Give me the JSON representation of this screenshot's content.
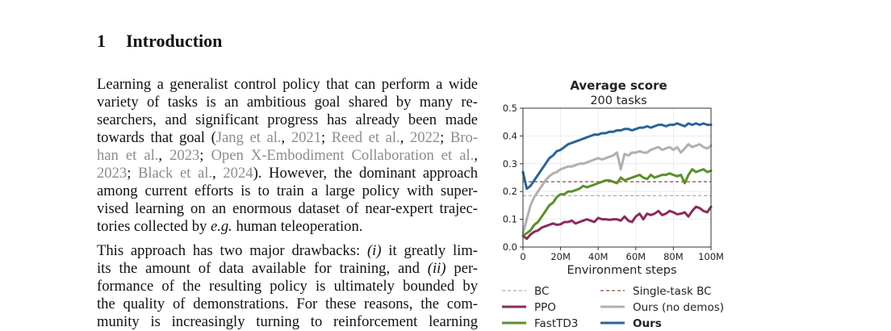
{
  "section": {
    "number": "1",
    "title": "Introduction"
  },
  "paragraph1": {
    "lines": [
      [
        {
          "t": "Learning a generalist control policy that can perform a wide"
        }
      ],
      [
        {
          "t": "variety of tasks is an ambitious goal shared by many re-"
        }
      ],
      [
        {
          "t": "searchers, and significant progress has already been made"
        }
      ],
      [
        {
          "t": "towards that goal ("
        },
        {
          "t": "Jang et al.",
          "c": "cite"
        },
        {
          "t": ", "
        },
        {
          "t": "2021",
          "c": "cite"
        },
        {
          "t": "; "
        },
        {
          "t": "Reed et al.",
          "c": "cite"
        },
        {
          "t": ", "
        },
        {
          "t": "2022",
          "c": "cite"
        },
        {
          "t": "; "
        },
        {
          "t": "Bro-",
          "c": "cite"
        }
      ],
      [
        {
          "t": "han et al.",
          "c": "cite"
        },
        {
          "t": ", "
        },
        {
          "t": "2023",
          "c": "cite"
        },
        {
          "t": "; "
        },
        {
          "t": "Open X-Embodiment Collaboration et al.",
          "c": "cite"
        },
        {
          "t": ","
        }
      ],
      [
        {
          "t": "2023",
          "c": "cite"
        },
        {
          "t": "; "
        },
        {
          "t": "Black et al.",
          "c": "cite"
        },
        {
          "t": ", "
        },
        {
          "t": "2024",
          "c": "cite"
        },
        {
          "t": "). However, the dominant approach"
        }
      ],
      [
        {
          "t": "among current efforts is to train a large policy with super-"
        }
      ],
      [
        {
          "t": "vised learning on an enormous dataset of near-expert trajec-"
        }
      ],
      [
        {
          "t": "tories collected by "
        },
        {
          "t": "e.g.",
          "c": "it"
        },
        {
          "t": " human teleoperation."
        }
      ]
    ]
  },
  "paragraph2": {
    "lines": [
      [
        {
          "t": "This approach has two major drawbacks: "
        },
        {
          "t": "(i)",
          "c": "it"
        },
        {
          "t": " it greatly lim-"
        }
      ],
      [
        {
          "t": "its the amount of data available for training, and "
        },
        {
          "t": "(ii)",
          "c": "it"
        },
        {
          "t": " per-"
        }
      ],
      [
        {
          "t": "formance of the resulting policy is ultimately bounded by"
        }
      ],
      [
        {
          "t": "the quality of demonstrations. For these reasons, the com-"
        }
      ],
      [
        {
          "t": "munity is increasingly turning to reinforcement learning"
        }
      ]
    ]
  },
  "figure": {
    "chart_data": {
      "type": "line",
      "title": "Average score",
      "subtitle": "200 tasks",
      "xlabel": "Environment steps",
      "ylabel": "",
      "xlim": [
        0,
        100
      ],
      "ylim": [
        0,
        0.5
      ],
      "xticks": [
        {
          "v": 0,
          "label": "0"
        },
        {
          "v": 20,
          "label": "20M"
        },
        {
          "v": 40,
          "label": "40M"
        },
        {
          "v": 60,
          "label": "60M"
        },
        {
          "v": 80,
          "label": "80M"
        },
        {
          "v": 100,
          "label": "100M"
        }
      ],
      "yticks": [
        {
          "v": 0,
          "label": "0.0"
        },
        {
          "v": 0.1,
          "label": "0.1"
        },
        {
          "v": 0.2,
          "label": "0.2"
        },
        {
          "v": 0.3,
          "label": "0.3"
        },
        {
          "v": 0.4,
          "label": "0.4"
        },
        {
          "v": 0.5,
          "label": "0.5"
        }
      ],
      "grid": true,
      "legend_position": "bottom",
      "hlines": [
        {
          "name": "BC",
          "y": 0.185,
          "color": "#aaaaaa",
          "dash": true
        },
        {
          "name": "Single-task BC",
          "y": 0.235,
          "color": "#8c4a3a",
          "dash": true
        }
      ],
      "series": [
        {
          "name": "PPO",
          "color": "#8b2a5c",
          "x": [
            0,
            2,
            4,
            6,
            8,
            10,
            12,
            14,
            16,
            18,
            20,
            22,
            24,
            26,
            28,
            30,
            32,
            34,
            36,
            38,
            40,
            42,
            44,
            46,
            48,
            50,
            52,
            54,
            56,
            58,
            60,
            62,
            64,
            66,
            68,
            70,
            72,
            74,
            76,
            78,
            80,
            82,
            84,
            86,
            88,
            90,
            92,
            94,
            96,
            98,
            100
          ],
          "y": [
            0.04,
            0.03,
            0.045,
            0.055,
            0.06,
            0.07,
            0.075,
            0.08,
            0.085,
            0.08,
            0.082,
            0.09,
            0.09,
            0.095,
            0.085,
            0.09,
            0.095,
            0.1,
            0.095,
            0.09,
            0.105,
            0.1,
            0.1,
            0.098,
            0.1,
            0.1,
            0.095,
            0.11,
            0.095,
            0.09,
            0.11,
            0.12,
            0.1,
            0.12,
            0.115,
            0.12,
            0.13,
            0.115,
            0.12,
            0.13,
            0.125,
            0.118,
            0.12,
            0.125,
            0.11,
            0.13,
            0.145,
            0.14,
            0.13,
            0.125,
            0.145
          ]
        },
        {
          "name": "FastTD3",
          "color": "#5b8f2a",
          "x": [
            0,
            2,
            4,
            6,
            8,
            10,
            12,
            14,
            16,
            18,
            20,
            22,
            24,
            26,
            28,
            30,
            32,
            34,
            36,
            38,
            40,
            42,
            44,
            46,
            48,
            50,
            52,
            54,
            56,
            58,
            60,
            62,
            64,
            66,
            68,
            70,
            72,
            74,
            76,
            78,
            80,
            82,
            84,
            86,
            88,
            90,
            92,
            94,
            96,
            98,
            100
          ],
          "y": [
            0.04,
            0.05,
            0.06,
            0.08,
            0.09,
            0.11,
            0.13,
            0.15,
            0.16,
            0.18,
            0.19,
            0.19,
            0.2,
            0.2,
            0.205,
            0.21,
            0.22,
            0.215,
            0.22,
            0.225,
            0.23,
            0.235,
            0.24,
            0.24,
            0.235,
            0.23,
            0.25,
            0.24,
            0.245,
            0.25,
            0.255,
            0.26,
            0.25,
            0.245,
            0.26,
            0.25,
            0.255,
            0.26,
            0.26,
            0.265,
            0.26,
            0.255,
            0.26,
            0.23,
            0.26,
            0.28,
            0.27,
            0.275,
            0.28,
            0.27,
            0.275
          ]
        },
        {
          "name": "Ours (no demos)",
          "color": "#b0b0b0",
          "x": [
            0,
            2,
            4,
            6,
            8,
            10,
            12,
            14,
            16,
            18,
            20,
            22,
            24,
            26,
            28,
            30,
            32,
            34,
            36,
            38,
            40,
            42,
            44,
            46,
            48,
            50,
            52,
            54,
            56,
            58,
            60,
            62,
            64,
            66,
            68,
            70,
            72,
            74,
            76,
            78,
            80,
            82,
            84,
            86,
            88,
            90,
            92,
            94,
            96,
            98,
            100
          ],
          "y": [
            0.05,
            0.1,
            0.15,
            0.18,
            0.2,
            0.22,
            0.24,
            0.255,
            0.265,
            0.27,
            0.28,
            0.285,
            0.29,
            0.29,
            0.295,
            0.3,
            0.3,
            0.305,
            0.31,
            0.315,
            0.32,
            0.315,
            0.32,
            0.325,
            0.33,
            0.34,
            0.28,
            0.335,
            0.33,
            0.34,
            0.34,
            0.345,
            0.34,
            0.34,
            0.35,
            0.355,
            0.36,
            0.35,
            0.355,
            0.36,
            0.35,
            0.36,
            0.34,
            0.355,
            0.37,
            0.36,
            0.365,
            0.37,
            0.36,
            0.355,
            0.365
          ]
        },
        {
          "name": "Ours",
          "color": "#2a6496",
          "bold": true,
          "x": [
            0,
            2,
            4,
            6,
            8,
            10,
            12,
            14,
            16,
            18,
            20,
            22,
            24,
            26,
            28,
            30,
            32,
            34,
            36,
            38,
            40,
            42,
            44,
            46,
            48,
            50,
            52,
            54,
            56,
            58,
            60,
            62,
            64,
            66,
            68,
            70,
            72,
            74,
            76,
            78,
            80,
            82,
            84,
            86,
            88,
            90,
            92,
            94,
            96,
            98,
            100
          ],
          "y": [
            0.27,
            0.21,
            0.22,
            0.24,
            0.26,
            0.28,
            0.3,
            0.32,
            0.33,
            0.345,
            0.35,
            0.36,
            0.37,
            0.375,
            0.38,
            0.385,
            0.39,
            0.395,
            0.4,
            0.405,
            0.405,
            0.41,
            0.41,
            0.415,
            0.415,
            0.42,
            0.42,
            0.425,
            0.425,
            0.42,
            0.425,
            0.43,
            0.43,
            0.435,
            0.43,
            0.435,
            0.44,
            0.44,
            0.435,
            0.44,
            0.44,
            0.445,
            0.44,
            0.435,
            0.445,
            0.44,
            0.445,
            0.44,
            0.445,
            0.44,
            0.44
          ]
        }
      ]
    }
  }
}
